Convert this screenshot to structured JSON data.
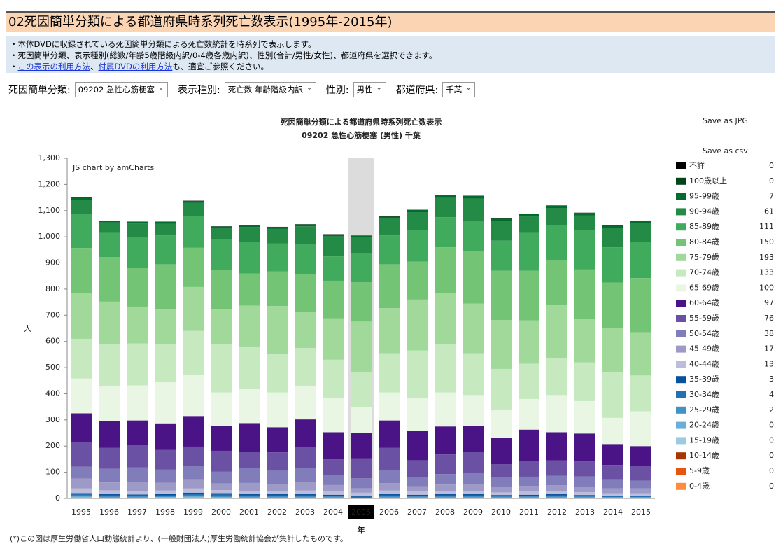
{
  "header": {
    "title": "02死因簡単分類による都道府県時系列死亡数表示(1995年-2015年)"
  },
  "info": {
    "line1": "・本体DVDに収録されている死因簡単分類による死亡数統計を時系列で表示します。",
    "line2": "・死因簡単分類、表示種別(総数/年齢5歳階級内訳/0-4歳各歳内訳)、性別(合計/男性/女性)、都道府県を選択できます。",
    "line3": {
      "prefix": "・",
      "link1": "この表示の利用方法",
      "sep": "、",
      "link2": "付属DVDの利用方法",
      "suffix": "も、適宜ご参照ください。"
    }
  },
  "controls": [
    {
      "label": "死因簡単分類:",
      "value": "09202 急性心筋梗塞"
    },
    {
      "label": "表示種別:",
      "value": "死亡数 年齢階級内訳"
    },
    {
      "label": "性別:",
      "value": "男性"
    },
    {
      "label": "都道府県:",
      "value": "千葉"
    }
  ],
  "buttons": {
    "jpg": "Save as JPG",
    "csv": "Save as csv"
  },
  "footnote": "(*)この図は厚生労働省人口動態統計より、(一般財団法人)厚生労働統計協会が集計したものです。",
  "chart_data": {
    "type": "bar",
    "stacked": true,
    "title": "死因簡単分類による都道府県時系列死亡数表示",
    "subtitle": "09202 急性心筋梗塞 (男性) 千葉",
    "credit": "JS chart by amCharts",
    "x_label": "年",
    "y_label": "人",
    "hover_index": 10,
    "categories": [
      "1995",
      "1996",
      "1997",
      "1998",
      "1999",
      "2000",
      "2001",
      "2002",
      "2003",
      "2004",
      "2005",
      "2006",
      "2007",
      "2008",
      "2009",
      "2010",
      "2011",
      "2012",
      "2013",
      "2014",
      "2015"
    ],
    "ylim": [
      0,
      1300
    ],
    "yticks": [
      0,
      100,
      200,
      300,
      400,
      500,
      600,
      700,
      800,
      900,
      {
        "value": 1000,
        "label": "1,000"
      },
      {
        "value": 1100,
        "label": "1,100"
      },
      {
        "value": 1200,
        "label": "1,200"
      },
      {
        "value": 1300,
        "label": "1,300"
      }
    ],
    "series": [
      {
        "name": "不詳",
        "color": "#000000",
        "values": [
          1,
          1,
          1,
          1,
          1,
          1,
          1,
          1,
          1,
          1,
          0,
          1,
          1,
          1,
          1,
          1,
          1,
          1,
          1,
          1,
          1
        ]
      },
      {
        "name": "100歳以上",
        "color": "#00441b",
        "values": [
          0,
          0,
          0,
          0,
          0,
          0,
          0,
          0,
          0,
          0,
          0,
          0,
          0,
          0,
          0,
          0,
          0,
          0,
          0,
          0,
          0
        ]
      },
      {
        "name": "95-99歳",
        "color": "#006d2c",
        "values": [
          8,
          6,
          6,
          7,
          7,
          5,
          7,
          7,
          7,
          7,
          7,
          7,
          9,
          10,
          10,
          9,
          9,
          10,
          9,
          9,
          9
        ]
      },
      {
        "name": "90-94歳",
        "color": "#238b45",
        "values": [
          56,
          40,
          51,
          45,
          50,
          44,
          57,
          55,
          70,
          77,
          61,
          65,
          68,
          74,
          86,
          75,
          62,
          64,
          57,
          73,
          72
        ]
      },
      {
        "name": "85-89歳",
        "color": "#41ab5d",
        "values": [
          128,
          93,
          120,
          110,
          122,
          118,
          120,
          107,
          113,
          93,
          111,
          110,
          120,
          115,
          115,
          115,
          145,
          135,
          150,
          135,
          138
        ]
      },
      {
        "name": "80-84歳",
        "color": "#74c476",
        "values": [
          174,
          170,
          147,
          173,
          150,
          150,
          123,
          133,
          145,
          144,
          150,
          168,
          145,
          177,
          200,
          188,
          190,
          172,
          190,
          173,
          207
        ]
      },
      {
        "name": "75-79歳",
        "color": "#a1d99b",
        "values": [
          173,
          164,
          141,
          132,
          168,
          132,
          157,
          182,
          137,
          158,
          193,
          172,
          195,
          195,
          190,
          187,
          165,
          203,
          165,
          169,
          165
        ]
      },
      {
        "name": "70-74歳",
        "color": "#c7e9c0",
        "values": [
          152,
          158,
          160,
          145,
          168,
          185,
          160,
          148,
          145,
          145,
          133,
          150,
          180,
          183,
          160,
          157,
          135,
          140,
          148,
          175,
          137
        ]
      },
      {
        "name": "65-69歳",
        "color": "#e8f6e3",
        "values": [
          133,
          135,
          134,
          158,
          157,
          127,
          132,
          133,
          128,
          132,
          100,
          107,
          127,
          130,
          117,
          106,
          117,
          142,
          124,
          100,
          133
        ]
      },
      {
        "name": "60-64歳",
        "color": "#4a1486",
        "values": [
          109,
          102,
          94,
          102,
          117,
          96,
          109,
          96,
          105,
          104,
          97,
          105,
          112,
          107,
          99,
          101,
          120,
          108,
          107,
          80,
          77
        ]
      },
      {
        "name": "55-59歳",
        "color": "#6a51a3",
        "values": [
          95,
          80,
          85,
          75,
          75,
          80,
          62,
          70,
          80,
          58,
          76,
          85,
          65,
          75,
          80,
          50,
          60,
          58,
          57,
          55,
          55
        ]
      },
      {
        "name": "50-54歳",
        "color": "#807dba",
        "values": [
          45,
          52,
          55,
          50,
          50,
          45,
          58,
          50,
          55,
          40,
          38,
          50,
          35,
          40,
          45,
          38,
          35,
          37,
          40,
          35,
          30
        ]
      },
      {
        "name": "45-49歳",
        "color": "#9e9ac8",
        "values": [
          38,
          30,
          35,
          30,
          35,
          25,
          30,
          28,
          32,
          25,
          17,
          28,
          20,
          25,
          25,
          20,
          22,
          22,
          20,
          18,
          18
        ]
      },
      {
        "name": "40-44歳",
        "color": "#bcbddc",
        "values": [
          18,
          15,
          14,
          13,
          16,
          12,
          13,
          12,
          14,
          12,
          13,
          14,
          12,
          12,
          13,
          10,
          12,
          12,
          11,
          9,
          9
        ]
      },
      {
        "name": "35-39歳",
        "color": "#08519c",
        "values": [
          5,
          5,
          4,
          5,
          6,
          6,
          5,
          5,
          5,
          4,
          3,
          5,
          4,
          5,
          5,
          4,
          4,
          5,
          4,
          3,
          3
        ]
      },
      {
        "name": "30-34歳",
        "color": "#2171b5",
        "values": [
          4,
          4,
          4,
          4,
          5,
          5,
          4,
          4,
          4,
          3,
          4,
          4,
          3,
          4,
          4,
          3,
          3,
          4,
          3,
          3,
          3
        ]
      },
      {
        "name": "25-29歳",
        "color": "#4292c6",
        "values": [
          4,
          3,
          3,
          3,
          4,
          4,
          3,
          3,
          3,
          3,
          2,
          3,
          3,
          3,
          3,
          2,
          3,
          3,
          2,
          2,
          2
        ]
      },
      {
        "name": "20-24歳",
        "color": "#6baed6",
        "values": [
          3,
          2,
          2,
          2,
          3,
          3,
          2,
          2,
          2,
          2,
          0,
          2,
          2,
          2,
          2,
          2,
          2,
          2,
          2,
          1,
          1
        ]
      },
      {
        "name": "15-19歳",
        "color": "#9ecae1",
        "values": [
          2,
          1,
          1,
          2,
          2,
          1,
          1,
          1,
          1,
          1,
          0,
          1,
          1,
          1,
          1,
          1,
          1,
          1,
          1,
          1,
          1
        ]
      },
      {
        "name": "10-14歳",
        "color": "#a63603",
        "values": [
          1,
          0,
          0,
          0,
          1,
          0,
          1,
          0,
          0,
          0,
          0,
          0,
          0,
          0,
          0,
          0,
          0,
          0,
          0,
          0,
          0
        ]
      },
      {
        "name": "5-9歳",
        "color": "#e6550d",
        "values": [
          0,
          0,
          1,
          0,
          0,
          0,
          0,
          0,
          0,
          0,
          0,
          0,
          0,
          0,
          0,
          0,
          0,
          0,
          0,
          0,
          0
        ]
      },
      {
        "name": "0-4歳",
        "color": "#fd8d3c",
        "values": [
          1,
          1,
          0,
          1,
          1,
          1,
          0,
          1,
          1,
          1,
          0,
          1,
          1,
          1,
          1,
          1,
          1,
          1,
          1,
          1,
          1
        ]
      }
    ]
  }
}
